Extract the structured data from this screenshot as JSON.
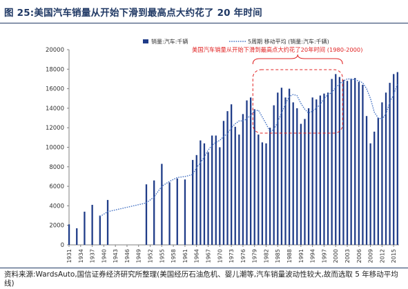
{
  "title": "图 25:美国汽车销量从开始下滑到最高点大约花了 20 年时间",
  "source": "资料来源:WardsAuto,国信证券经济研究所整理(美国经历石油危机、婴儿潮等,汽车销量波动性较大,故而选取 5 年移动平均线)",
  "chart_data": {
    "type": "bar",
    "legend_placement": "top",
    "grid": false,
    "ylim": [
      0,
      20000
    ],
    "yticks": [
      "0",
      "2000",
      "4000",
      "6000",
      "8000",
      "10000",
      "12000",
      "14000",
      "16000",
      "18000",
      "20000"
    ],
    "xticks": [
      "1931",
      "1934",
      "1937",
      "1940",
      "1943",
      "1946",
      "1949",
      "1952",
      "1955",
      "1958",
      "1961",
      "1964",
      "1967",
      "1970",
      "1973",
      "1976",
      "1979",
      "1982",
      "1985",
      "1988",
      "1991",
      "1994",
      "1997",
      "2000",
      "2003",
      "2006",
      "2009",
      "2012",
      "2015"
    ],
    "bar_color": "#1f3c88",
    "line_color": "#4472c4",
    "annotation_color": "#e02020",
    "series": [
      {
        "name": "销量:汽车:千辆",
        "kind": "bar",
        "x": [
          1931,
          1933,
          1935,
          1937,
          1939,
          1941,
          1951,
          1953,
          1955,
          1957,
          1959,
          1961,
          1963,
          1964,
          1965,
          1966,
          1967,
          1968,
          1969,
          1970,
          1971,
          1972,
          1973,
          1974,
          1975,
          1976,
          1977,
          1978,
          1979,
          1980,
          1981,
          1982,
          1983,
          1984,
          1985,
          1986,
          1987,
          1988,
          1989,
          1990,
          1991,
          1992,
          1993,
          1994,
          1995,
          1996,
          1997,
          1998,
          1999,
          2000,
          2001,
          2002,
          2003,
          2004,
          2005,
          2006,
          2007,
          2008,
          2009,
          2010,
          2011,
          2012,
          2013,
          2014,
          2015,
          2016
        ],
        "values": [
          2100,
          1700,
          3400,
          4100,
          3000,
          4600,
          6200,
          6600,
          8300,
          6400,
          6800,
          6700,
          8700,
          9200,
          10700,
          10400,
          9500,
          11200,
          11200,
          10000,
          12700,
          13700,
          14400,
          12100,
          11300,
          13400,
          14800,
          15100,
          13900,
          11300,
          10500,
          10400,
          12000,
          14300,
          15600,
          16100,
          15100,
          16000,
          14600,
          14000,
          12400,
          12900,
          14000,
          15100,
          14900,
          15300,
          15500,
          15600,
          17000,
          17500,
          17200,
          16900,
          16800,
          17000,
          17100,
          16700,
          16400,
          13200,
          10400,
          11600,
          13000,
          14600,
          15600,
          16600,
          17500,
          17700
        ]
      },
      {
        "name": "5周期 移动平均 (销量:汽车:千辆)",
        "kind": "line",
        "x": [
          1939,
          1941,
          1951,
          1953,
          1955,
          1957,
          1959,
          1961,
          1963,
          1964,
          1965,
          1966,
          1967,
          1968,
          1969,
          1970,
          1971,
          1972,
          1973,
          1974,
          1975,
          1976,
          1977,
          1978,
          1979,
          1980,
          1981,
          1982,
          1983,
          1984,
          1985,
          1986,
          1987,
          1988,
          1989,
          1990,
          1991,
          1992,
          1993,
          1994,
          1995,
          1996,
          1997,
          1998,
          1999,
          2000,
          2001,
          2002,
          2003,
          2004,
          2005,
          2006,
          2007,
          2008,
          2009,
          2010,
          2011,
          2012,
          2013,
          2014,
          2015,
          2016
        ],
        "values": [
          2900,
          3400,
          4300,
          4900,
          6000,
          6500,
          6900,
          7000,
          7200,
          7900,
          8400,
          9000,
          9700,
          10200,
          10500,
          10700,
          11100,
          11400,
          12000,
          12400,
          12700,
          12700,
          12900,
          13300,
          13700,
          13800,
          13100,
          12400,
          11600,
          11800,
          12600,
          13500,
          14400,
          15200,
          15400,
          15300,
          14500,
          13900,
          13500,
          13700,
          14000,
          14400,
          15000,
          15400,
          15600,
          16100,
          16500,
          16800,
          17000,
          17000,
          16900,
          16800,
          16600,
          16000,
          15000,
          13600,
          13000,
          12900,
          13400,
          14600,
          15400,
          16500
        ]
      }
    ],
    "annotations": [
      {
        "text": "美国汽车销量从开始下滑到最高点大约花了20年时间 (1980-2000)",
        "from": 1980,
        "to": 2000
      }
    ]
  }
}
